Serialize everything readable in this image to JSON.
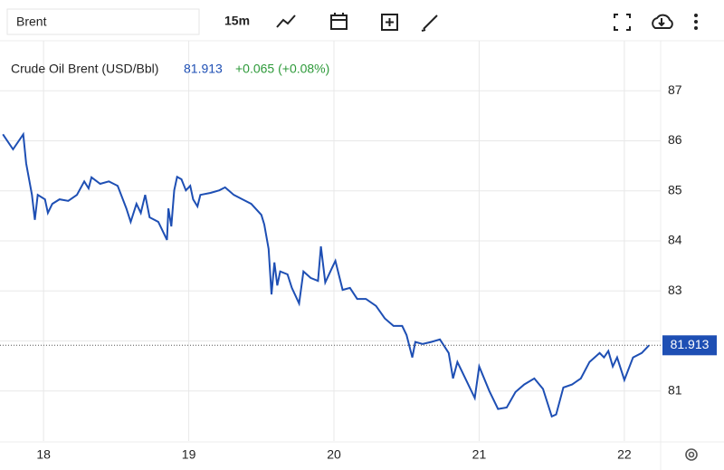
{
  "toolbar": {
    "symbol": "Brent",
    "interval": "15m"
  },
  "chart_data": {
    "type": "line",
    "title": "Crude Oil Brent (USD/Bbl)",
    "last_value": 81.913,
    "change": "+0.065 (+0.08%)",
    "color": "#1e4fb4",
    "grid": true,
    "xlim": [
      17.7,
      22.25
    ],
    "xticks": [
      18,
      19,
      20,
      21,
      22
    ],
    "ylim": [
      80,
      88
    ],
    "yticks": [
      81,
      82,
      83,
      84,
      85,
      86,
      87
    ],
    "x": [
      17.72,
      17.79,
      17.86,
      17.88,
      17.92,
      17.94,
      17.96,
      18.01,
      18.03,
      18.06,
      18.11,
      18.17,
      18.23,
      18.28,
      18.31,
      18.33,
      18.39,
      18.45,
      18.51,
      18.57,
      18.6,
      18.64,
      18.67,
      18.7,
      18.73,
      18.79,
      18.82,
      18.85,
      18.86,
      18.88,
      18.9,
      18.92,
      18.95,
      18.98,
      19.01,
      19.03,
      19.06,
      19.08,
      19.15,
      19.21,
      19.25,
      19.31,
      19.37,
      19.43,
      19.5,
      19.52,
      19.55,
      19.57,
      19.59,
      19.61,
      19.63,
      19.68,
      19.71,
      19.76,
      19.79,
      19.84,
      19.89,
      19.91,
      19.94,
      19.99,
      20.01,
      20.06,
      20.11,
      20.16,
      20.22,
      20.29,
      20.35,
      20.41,
      20.47,
      20.5,
      20.54,
      20.56,
      20.61,
      20.67,
      20.73,
      20.79,
      20.82,
      20.85,
      20.91,
      20.97,
      21.0,
      21.07,
      21.13,
      21.19,
      21.25,
      21.31,
      21.38,
      21.44,
      21.5,
      21.53,
      21.58,
      21.64,
      21.7,
      21.76,
      21.83,
      21.86,
      21.89,
      21.92,
      21.95,
      22.0,
      22.06,
      22.12,
      22.17
    ],
    "values": [
      86.13,
      85.83,
      86.13,
      85.55,
      84.92,
      84.42,
      84.92,
      84.83,
      84.56,
      84.74,
      84.83,
      84.8,
      84.92,
      85.19,
      85.05,
      85.27,
      85.14,
      85.19,
      85.1,
      84.65,
      84.38,
      84.74,
      84.56,
      84.92,
      84.47,
      84.38,
      84.2,
      84.02,
      84.65,
      84.29,
      85.01,
      85.28,
      85.23,
      85.01,
      85.1,
      84.83,
      84.69,
      84.92,
      84.96,
      85.01,
      85.07,
      84.92,
      84.83,
      84.74,
      84.52,
      84.33,
      83.84,
      82.93,
      83.57,
      83.11,
      83.39,
      83.33,
      83.06,
      82.75,
      83.39,
      83.26,
      83.2,
      83.89,
      83.17,
      83.48,
      83.6,
      83.02,
      83.06,
      82.84,
      82.84,
      82.7,
      82.45,
      82.3,
      82.3,
      82.12,
      81.67,
      81.98,
      81.94,
      81.98,
      82.03,
      81.76,
      81.25,
      81.58,
      81.22,
      80.86,
      81.49,
      81.0,
      80.64,
      80.67,
      80.98,
      81.13,
      81.25,
      81.04,
      80.49,
      80.53,
      81.07,
      81.13,
      81.25,
      81.58,
      81.76,
      81.67,
      81.8,
      81.49,
      81.67,
      81.22,
      81.67,
      81.76,
      81.913
    ]
  }
}
